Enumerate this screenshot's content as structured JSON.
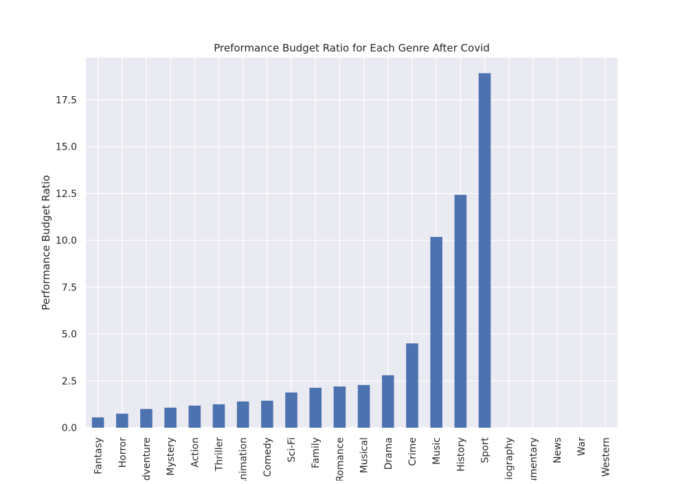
{
  "chart_data": {
    "type": "bar",
    "title": "Preformance Budget Ratio for Each Genre After Covid",
    "xlabel": "",
    "ylabel": "Performance Budget Ratio",
    "ylim": [
      0,
      19.75
    ],
    "grid": true,
    "colors": {
      "bar": "#4c72b0",
      "plot_background": "#eaeaf2",
      "grid": "#ffffff",
      "text": "#262626"
    },
    "yticks": [
      "0.0",
      "2.5",
      "5.0",
      "7.5",
      "10.0",
      "12.5",
      "15.0",
      "17.5"
    ],
    "ytick_values": [
      0,
      2.5,
      5.0,
      7.5,
      10.0,
      12.5,
      15.0,
      17.5
    ],
    "categories": [
      "Fantasy",
      "Horror",
      "Adventure",
      "Mystery",
      "Action",
      "Thriller",
      "Animation",
      "Comedy",
      "Sci-Fi",
      "Family",
      "Romance",
      "Musical",
      "Drama",
      "Crime",
      "Music",
      "History",
      "Sport",
      "Biography",
      "Documentary",
      "News",
      "War",
      "Western"
    ],
    "values": [
      0.55,
      0.75,
      1.0,
      1.07,
      1.18,
      1.25,
      1.4,
      1.44,
      1.88,
      2.13,
      2.2,
      2.28,
      2.8,
      4.5,
      10.18,
      12.43,
      18.92,
      0,
      0,
      0,
      0,
      0
    ]
  }
}
